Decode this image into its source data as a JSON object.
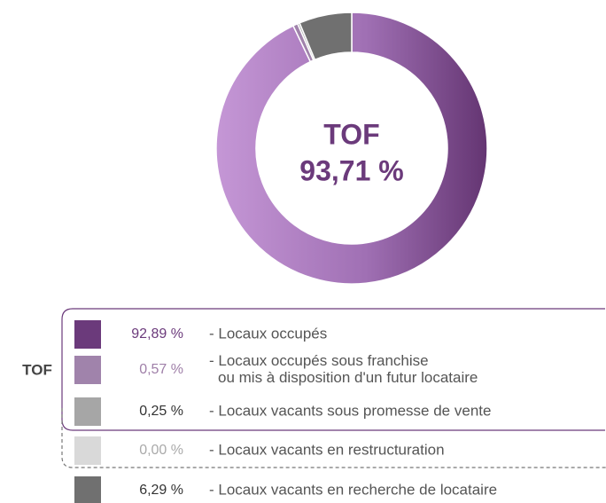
{
  "chart_data": {
    "type": "pie",
    "donut": true,
    "center_title": "TOF",
    "center_value": "93,71 %",
    "legend_group_label": "TOF",
    "categories": [
      [
        "- Locaux occupés"
      ],
      [
        "- Locaux occupés sous franchise",
        "ou mis à disposition d'un futur locataire"
      ],
      [
        "- Locaux vacants sous promesse de vente"
      ],
      [
        "- Locaux vacants en restructuration"
      ],
      [
        "- Locaux vacants en recherche de locataire"
      ]
    ],
    "values": [
      92.89,
      0.57,
      0.25,
      0.0,
      6.29
    ],
    "value_labels": [
      "92,89 %",
      "0,57 %",
      "0,25 %",
      "0,00 %",
      "6,29 %"
    ],
    "colors": [
      "#6b3a7b",
      "#a083ab",
      "#a6a6a6",
      "#d9d9d9",
      "#707070"
    ]
  }
}
